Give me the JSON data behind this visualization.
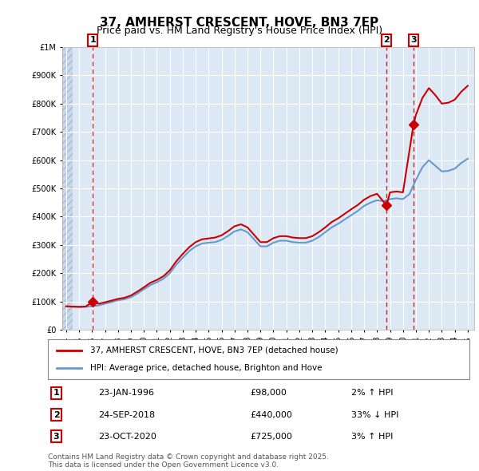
{
  "title": "37, AMHERST CRESCENT, HOVE, BN3 7EP",
  "subtitle": "Price paid vs. HM Land Registry's House Price Index (HPI)",
  "background_color": "#dce9f5",
  "plot_bg_color": "#dce9f5",
  "hatch_color": "#c0d0e8",
  "grid_color": "#ffffff",
  "legend_line1": "37, AMHERST CRESCENT, HOVE, BN3 7EP (detached house)",
  "legend_line2": "HPI: Average price, detached house, Brighton and Hove",
  "footnote": "Contains HM Land Registry data © Crown copyright and database right 2025.\nThis data is licensed under the Open Government Licence v3.0.",
  "transactions": [
    {
      "label": "1",
      "date": "23-JAN-1996",
      "price": 98000,
      "year": 1996.06,
      "hpi_rel": "2% ↑ HPI"
    },
    {
      "label": "2",
      "date": "24-SEP-2018",
      "price": 440000,
      "year": 2018.73,
      "hpi_rel": "33% ↓ HPI"
    },
    {
      "label": "3",
      "date": "23-OCT-2020",
      "price": 725000,
      "year": 2020.81,
      "hpi_rel": "3% ↑ HPI"
    }
  ],
  "red_line_color": "#cc0000",
  "blue_line_color": "#6699cc",
  "marker_color": "#cc0000",
  "dashed_line_color": "#cc0000",
  "ylim": [
    0,
    1000000
  ],
  "xlim_start": 1994,
  "xlim_end": 2025.5,
  "hpi_data": {
    "years": [
      1994.0,
      1994.5,
      1995.0,
      1995.5,
      1996.0,
      1996.5,
      1997.0,
      1997.5,
      1998.0,
      1998.5,
      1999.0,
      1999.5,
      2000.0,
      2000.5,
      2001.0,
      2001.5,
      2002.0,
      2002.5,
      2003.0,
      2003.5,
      2004.0,
      2004.5,
      2005.0,
      2005.5,
      2006.0,
      2006.5,
      2007.0,
      2007.5,
      2008.0,
      2008.5,
      2009.0,
      2009.5,
      2010.0,
      2010.5,
      2011.0,
      2011.5,
      2012.0,
      2012.5,
      2013.0,
      2013.5,
      2014.0,
      2014.5,
      2015.0,
      2015.5,
      2016.0,
      2016.5,
      2017.0,
      2017.5,
      2018.0,
      2018.5,
      2019.0,
      2019.5,
      2020.0,
      2020.5,
      2021.0,
      2021.5,
      2022.0,
      2022.5,
      2023.0,
      2023.5,
      2024.0,
      2024.5,
      2025.0
    ],
    "values": [
      82000,
      81000,
      80000,
      81000,
      83000,
      86000,
      92000,
      98000,
      104000,
      108000,
      115000,
      128000,
      143000,
      158000,
      168000,
      180000,
      200000,
      230000,
      255000,
      278000,
      295000,
      305000,
      308000,
      310000,
      318000,
      332000,
      348000,
      355000,
      345000,
      320000,
      295000,
      295000,
      308000,
      315000,
      315000,
      310000,
      308000,
      308000,
      315000,
      328000,
      345000,
      362000,
      375000,
      390000,
      405000,
      420000,
      438000,
      450000,
      458000,
      455000,
      462000,
      465000,
      462000,
      480000,
      530000,
      575000,
      600000,
      580000,
      560000,
      562000,
      570000,
      590000,
      605000
    ]
  },
  "price_paid_data": {
    "years": [
      1994.0,
      1994.5,
      1995.0,
      1995.5,
      1996.06,
      1996.5,
      1997.0,
      1997.5,
      1998.0,
      1998.5,
      1999.0,
      1999.5,
      2000.0,
      2000.5,
      2001.0,
      2001.5,
      2002.0,
      2002.5,
      2003.0,
      2003.5,
      2004.0,
      2004.5,
      2005.0,
      2005.5,
      2006.0,
      2006.5,
      2007.0,
      2007.5,
      2008.0,
      2008.5,
      2009.0,
      2009.5,
      2010.0,
      2010.5,
      2011.0,
      2011.5,
      2012.0,
      2012.5,
      2013.0,
      2013.5,
      2014.0,
      2014.5,
      2015.0,
      2015.5,
      2016.0,
      2016.5,
      2017.0,
      2017.5,
      2018.0,
      2018.73,
      2019.0,
      2019.5,
      2020.0,
      2020.81,
      2021.0,
      2021.5,
      2022.0,
      2022.5,
      2023.0,
      2023.5,
      2024.0,
      2024.5,
      2025.0
    ],
    "values": [
      83000,
      82000,
      81000,
      82000,
      98000,
      92000,
      97000,
      103000,
      109000,
      113000,
      121000,
      135000,
      150000,
      166000,
      176000,
      189000,
      210000,
      242000,
      268000,
      292000,
      310000,
      320000,
      323000,
      326000,
      334000,
      349000,
      366000,
      373000,
      362000,
      336000,
      310000,
      310000,
      324000,
      331000,
      331000,
      326000,
      324000,
      324000,
      331000,
      345000,
      362000,
      381000,
      394000,
      410000,
      426000,
      441000,
      460000,
      473000,
      481000,
      440000,
      486000,
      489000,
      486000,
      725000,
      760000,
      820000,
      855000,
      830000,
      800000,
      803000,
      814000,
      842000,
      863000
    ]
  }
}
